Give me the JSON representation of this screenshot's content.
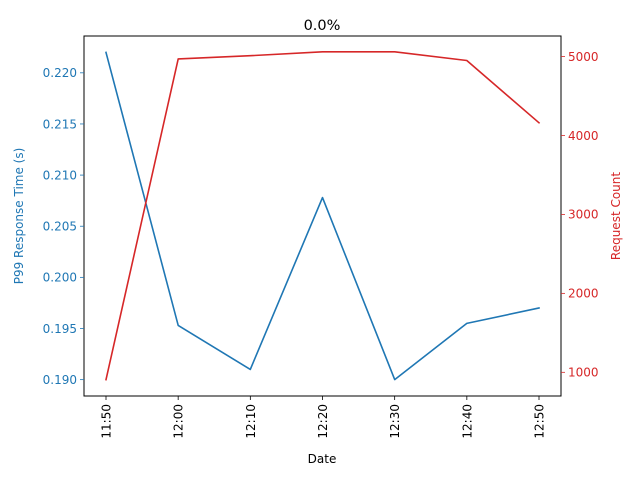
{
  "chart_data": {
    "type": "line",
    "title": "0.0%",
    "xlabel": "Date",
    "categories": [
      "11:50",
      "12:00",
      "12:10",
      "12:20",
      "12:30",
      "12:40",
      "12:50"
    ],
    "y_left": {
      "label": "P99 Response Time (s)",
      "color": "#1f77b4",
      "ticks": [
        "0.190",
        "0.195",
        "0.200",
        "0.205",
        "0.210",
        "0.215",
        "0.220"
      ],
      "tick_values": [
        0.19,
        0.195,
        0.2,
        0.205,
        0.21,
        0.215,
        0.22
      ],
      "ylim": [
        0.1884,
        0.2236
      ]
    },
    "y_right": {
      "label": "Request Count",
      "color": "#d62728",
      "ticks": [
        "1000",
        "2000",
        "3000",
        "4000",
        "5000"
      ],
      "tick_values": [
        1000,
        2000,
        3000,
        4000,
        5000
      ],
      "ylim": [
        700,
        5260
      ]
    },
    "series": [
      {
        "axis": "left",
        "color": "#1f77b4",
        "values": [
          0.222,
          0.1953,
          0.191,
          0.2078,
          0.19,
          0.1955,
          0.197
        ]
      },
      {
        "axis": "right",
        "color": "#d62728",
        "values": [
          907,
          4970,
          5010,
          5060,
          5060,
          4950,
          4160
        ]
      }
    ],
    "grid": false,
    "legend": "none"
  }
}
